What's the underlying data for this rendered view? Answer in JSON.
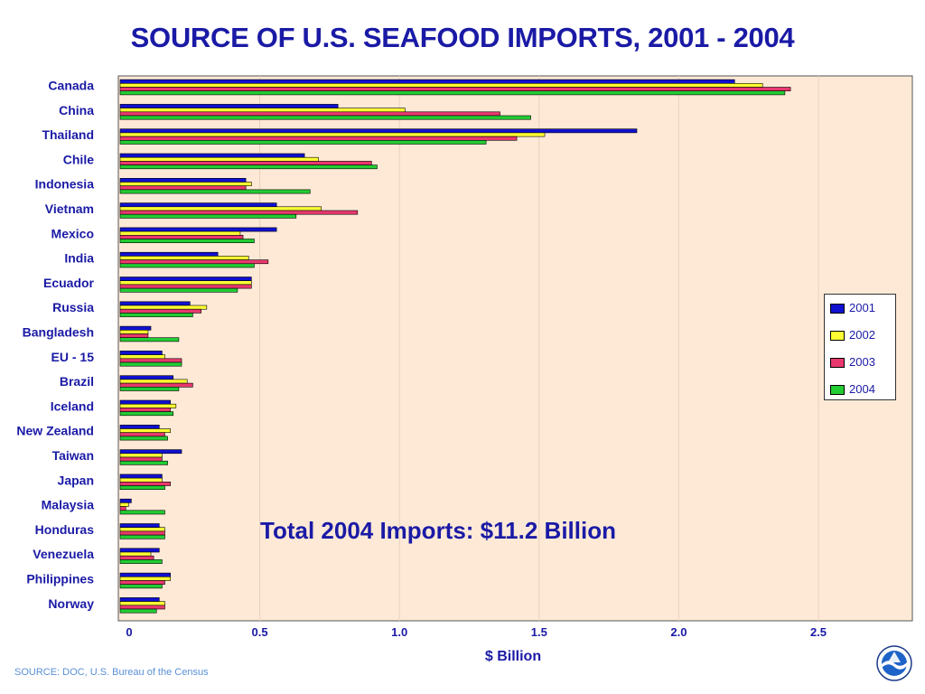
{
  "title": "SOURCE OF U.S. SEAFOOD IMPORTS, 2001 - 2004",
  "annotation": "Total 2004 Imports: $11.2  Billion",
  "source": "SOURCE: DOC, U.S. Bureau of the Census",
  "colors": {
    "plot_background": "#fde9d6",
    "text": "#1a1aa6",
    "grid": "#e8d2bc"
  },
  "logo_icon": "noaa-logo-icon",
  "chart_data": {
    "type": "bar",
    "orientation": "horizontal",
    "title": "SOURCE OF U.S. SEAFOOD IMPORTS, 2001 - 2004",
    "xlabel": "$ Billion",
    "ylabel": "",
    "xlim": [
      0,
      2.8
    ],
    "ticks": [
      {
        "value": 0,
        "label": "0"
      },
      {
        "value": 0.5,
        "label": "0.5"
      },
      {
        "value": 1.0,
        "label": "1.0"
      },
      {
        "value": 1.5,
        "label": "1.5"
      },
      {
        "value": 2.0,
        "label": "2.0"
      },
      {
        "value": 2.5,
        "label": "2.5"
      }
    ],
    "legend_position": "right",
    "categories": [
      "Canada",
      "China",
      "Thailand",
      "Chile",
      "Indonesia",
      "Vietnam",
      "Mexico",
      "India",
      "Ecuador",
      "Russia",
      "Bangladesh",
      "EU - 15",
      "Brazil",
      "Iceland",
      "New Zealand",
      "Taiwan",
      "Japan",
      "Malaysia",
      "Honduras",
      "Venezuela",
      "Philippines",
      "Norway"
    ],
    "series": [
      {
        "name": "2001",
        "color": "#1010d0",
        "values": [
          2.2,
          0.78,
          1.85,
          0.66,
          0.45,
          0.56,
          0.56,
          0.35,
          0.47,
          0.25,
          0.11,
          0.15,
          0.19,
          0.18,
          0.14,
          0.22,
          0.15,
          0.04,
          0.14,
          0.14,
          0.18,
          0.14
        ]
      },
      {
        "name": "2002",
        "color": "#ffff33",
        "values": [
          2.3,
          1.02,
          1.52,
          0.71,
          0.47,
          0.72,
          0.43,
          0.46,
          0.47,
          0.31,
          0.1,
          0.16,
          0.24,
          0.2,
          0.18,
          0.15,
          0.15,
          0.03,
          0.16,
          0.11,
          0.18,
          0.16
        ]
      },
      {
        "name": "2003",
        "color": "#e8386e",
        "values": [
          2.4,
          1.36,
          1.42,
          0.9,
          0.45,
          0.85,
          0.44,
          0.53,
          0.47,
          0.29,
          0.1,
          0.22,
          0.26,
          0.18,
          0.16,
          0.15,
          0.18,
          0.02,
          0.16,
          0.12,
          0.16,
          0.16
        ]
      },
      {
        "name": "2004",
        "color": "#22cc33",
        "values": [
          2.38,
          1.47,
          1.31,
          0.92,
          0.68,
          0.63,
          0.48,
          0.48,
          0.42,
          0.26,
          0.21,
          0.22,
          0.21,
          0.19,
          0.17,
          0.17,
          0.16,
          0.16,
          0.16,
          0.15,
          0.15,
          0.13
        ]
      }
    ]
  }
}
